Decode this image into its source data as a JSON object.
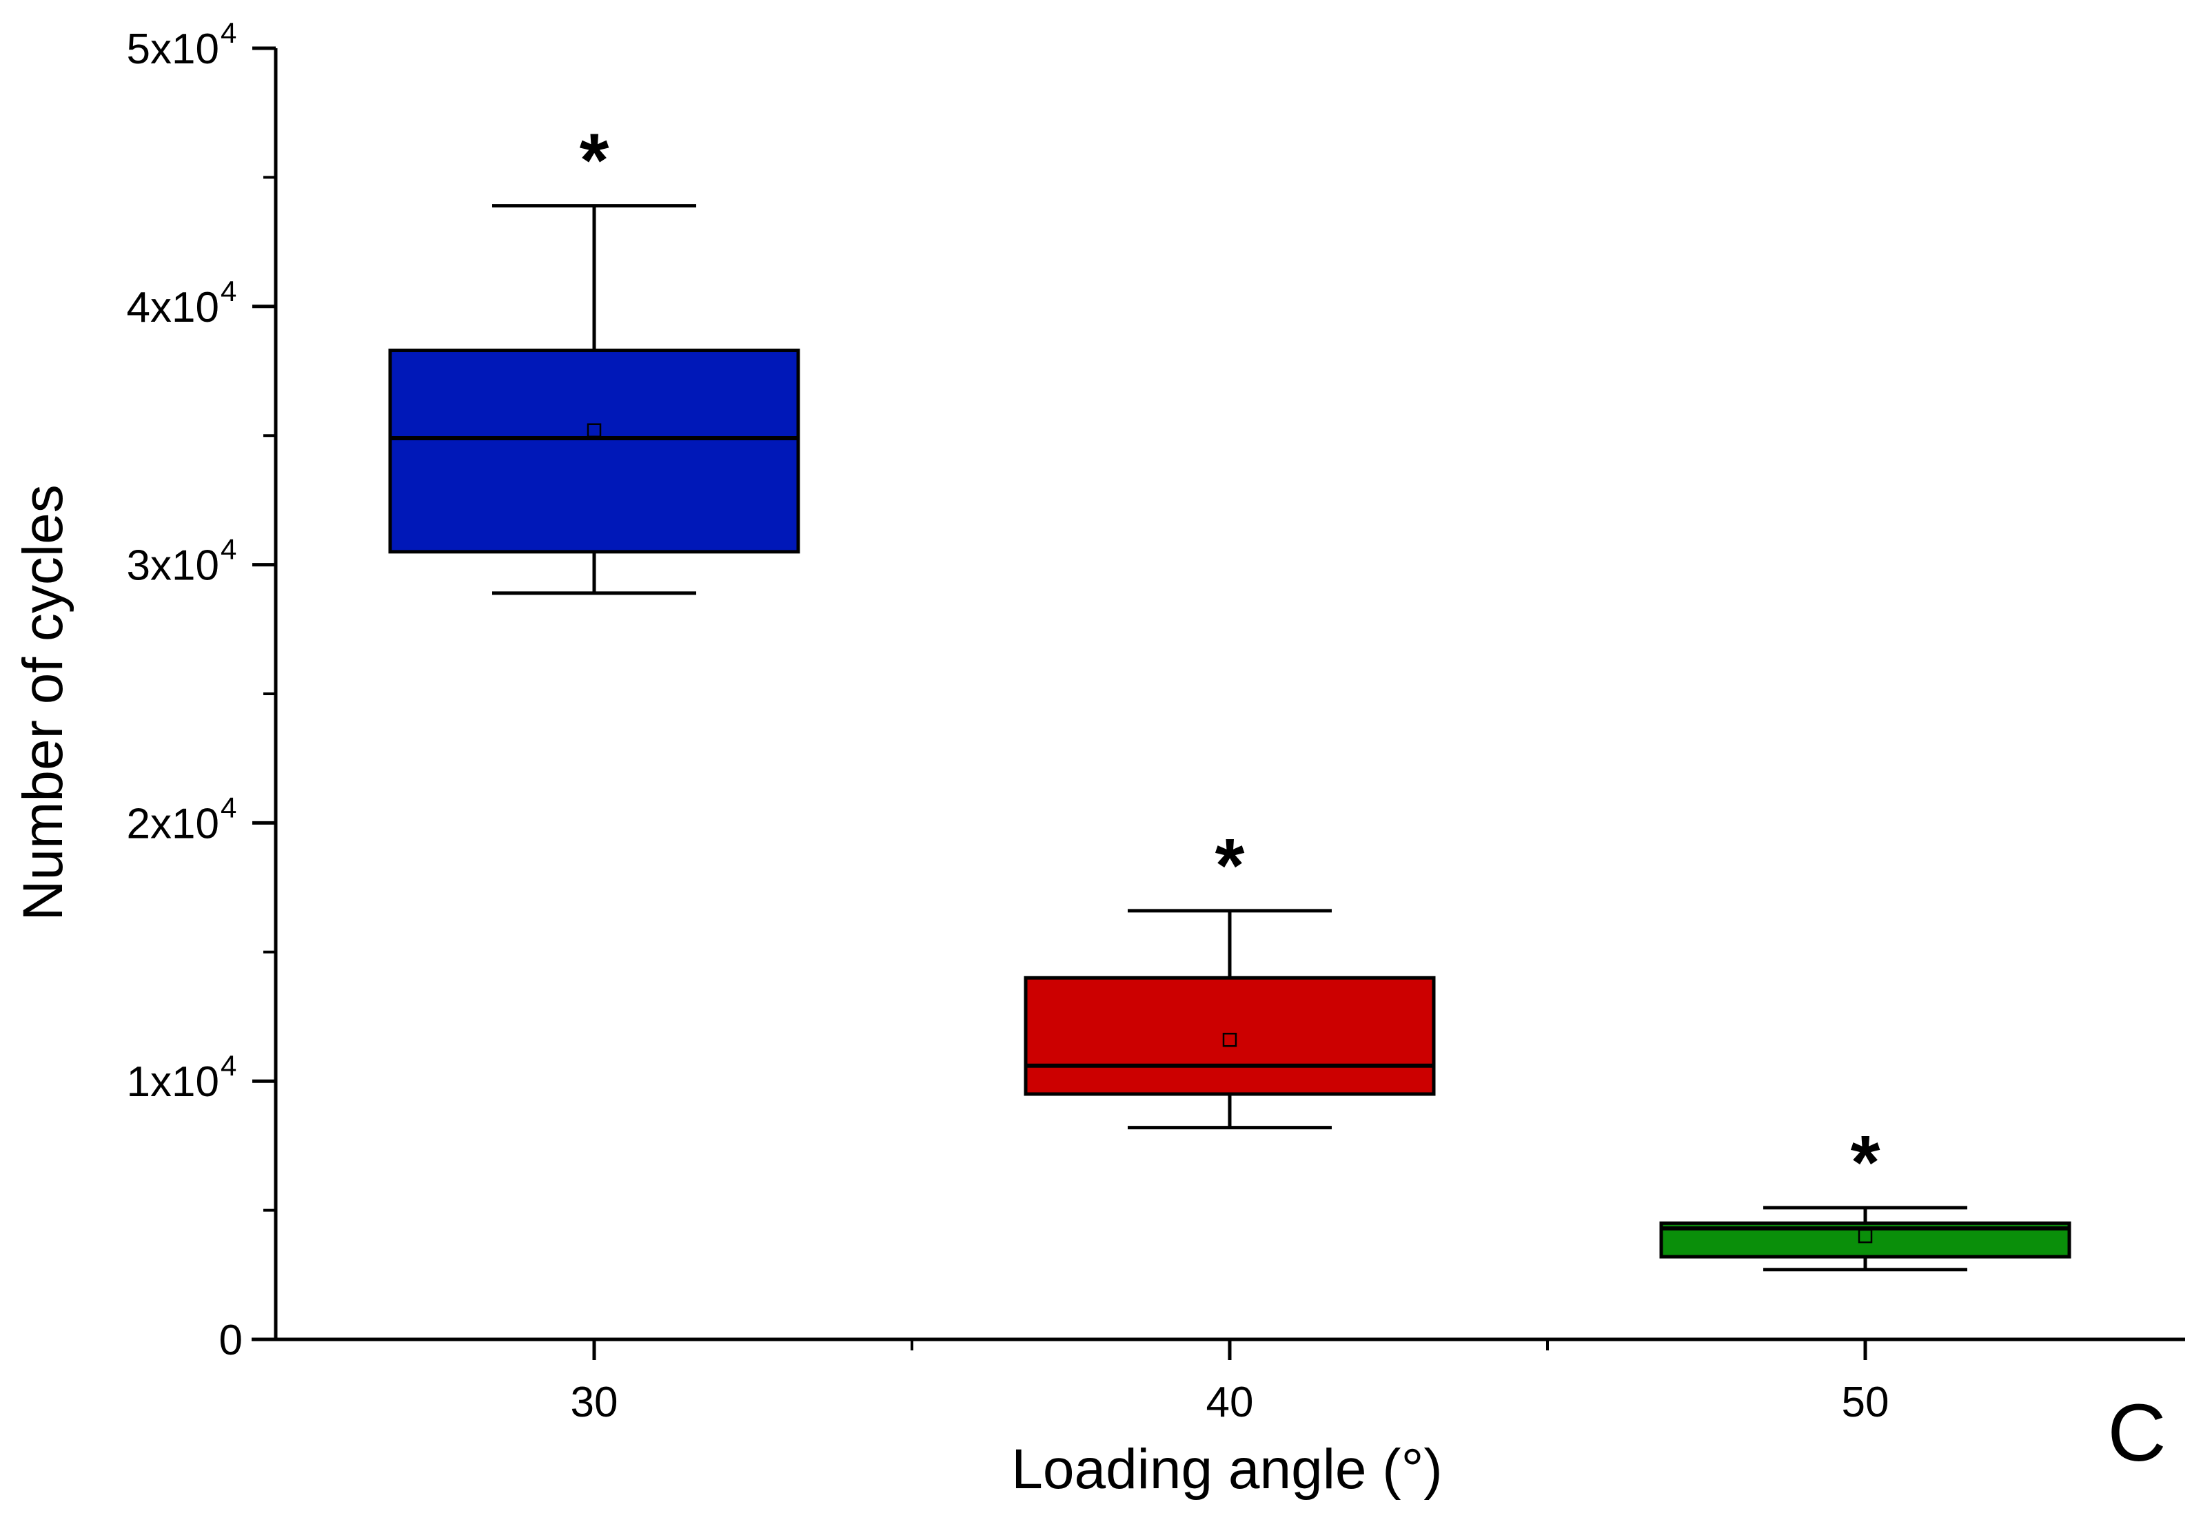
{
  "chart_data": {
    "type": "box",
    "title": "",
    "xlabel": "Loading angle (°)",
    "ylabel": "Number of cycles",
    "panel_label": "C",
    "ylim": [
      0,
      50000
    ],
    "y_ticks": [
      {
        "value": 0,
        "label": "0",
        "exp": ""
      },
      {
        "value": 10000,
        "label": "1x10",
        "exp": "4"
      },
      {
        "value": 20000,
        "label": "2x10",
        "exp": "4"
      },
      {
        "value": 30000,
        "label": "3x10",
        "exp": "4"
      },
      {
        "value": 40000,
        "label": "4x10",
        "exp": "4"
      },
      {
        "value": 50000,
        "label": "5x10",
        "exp": "4"
      }
    ],
    "categories": [
      "30",
      "40",
      "50"
    ],
    "boxes": [
      {
        "category": "30",
        "whisker_low": 28900,
        "q1": 30500,
        "median": 34900,
        "q3": 38300,
        "whisker_high": 43900,
        "mean": 35200,
        "color": "#0018b8",
        "annotation": "*"
      },
      {
        "category": "40",
        "whisker_low": 8200,
        "q1": 9500,
        "median": 10600,
        "q3": 14000,
        "whisker_high": 16600,
        "mean": 11600,
        "color": "#cc0000",
        "annotation": "*"
      },
      {
        "category": "50",
        "whisker_low": 2700,
        "q1": 3200,
        "median": 4300,
        "q3": 4500,
        "whisker_high": 5100,
        "mean": 4000,
        "color": "#0a8f0a",
        "annotation": "*"
      }
    ]
  }
}
